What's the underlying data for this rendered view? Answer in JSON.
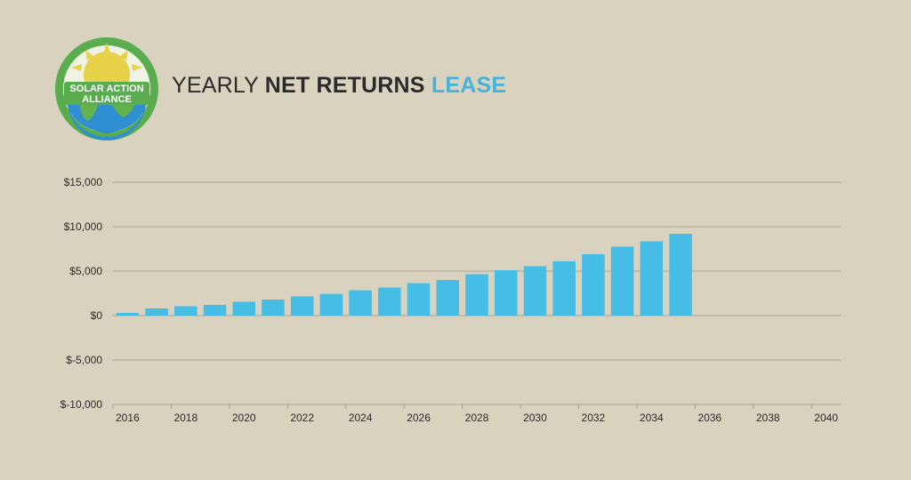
{
  "logo": {
    "line1": "SOLAR ACTION",
    "line2": "ALLIANCE",
    "colors": {
      "ring": "#5aad4e",
      "sun": "#e8d24a",
      "earth_ocean": "#2f8fd1",
      "earth_land": "#63b34a"
    }
  },
  "title": {
    "part1": "YEARLY ",
    "part2": "NET RETURNS ",
    "part3": "LEASE",
    "accent_color": "#45b3dd"
  },
  "chart_data": {
    "type": "bar",
    "categories": [
      "2016",
      "2017",
      "2018",
      "2019",
      "2020",
      "2021",
      "2022",
      "2023",
      "2024",
      "2025",
      "2026",
      "2027",
      "2028",
      "2029",
      "2030",
      "2031",
      "2032",
      "2033",
      "2034",
      "2035",
      "2036",
      "2037",
      "2038",
      "2039",
      "2040"
    ],
    "values": [
      300,
      800,
      1050,
      1200,
      1550,
      1800,
      2150,
      2450,
      2850,
      3150,
      3650,
      4000,
      4650,
      5100,
      5550,
      6100,
      6900,
      7750,
      8350,
      9200,
      null,
      null,
      null,
      null,
      null
    ],
    "x_tick_labels": [
      "2016",
      "2018",
      "2020",
      "2022",
      "2024",
      "2026",
      "2028",
      "2030",
      "2032",
      "2034",
      "2036",
      "2038",
      "2040"
    ],
    "y_ticks": [
      15000,
      10000,
      5000,
      0,
      -5000,
      -10000
    ],
    "y_tick_labels": [
      "$15,000",
      "$10,000",
      "$5,000",
      "$0",
      "$-5,000",
      "$-10,000"
    ],
    "ylim": [
      -10000,
      15000
    ],
    "grid": true,
    "bar_color": "#45bde4",
    "grid_color": "#a9a291"
  }
}
